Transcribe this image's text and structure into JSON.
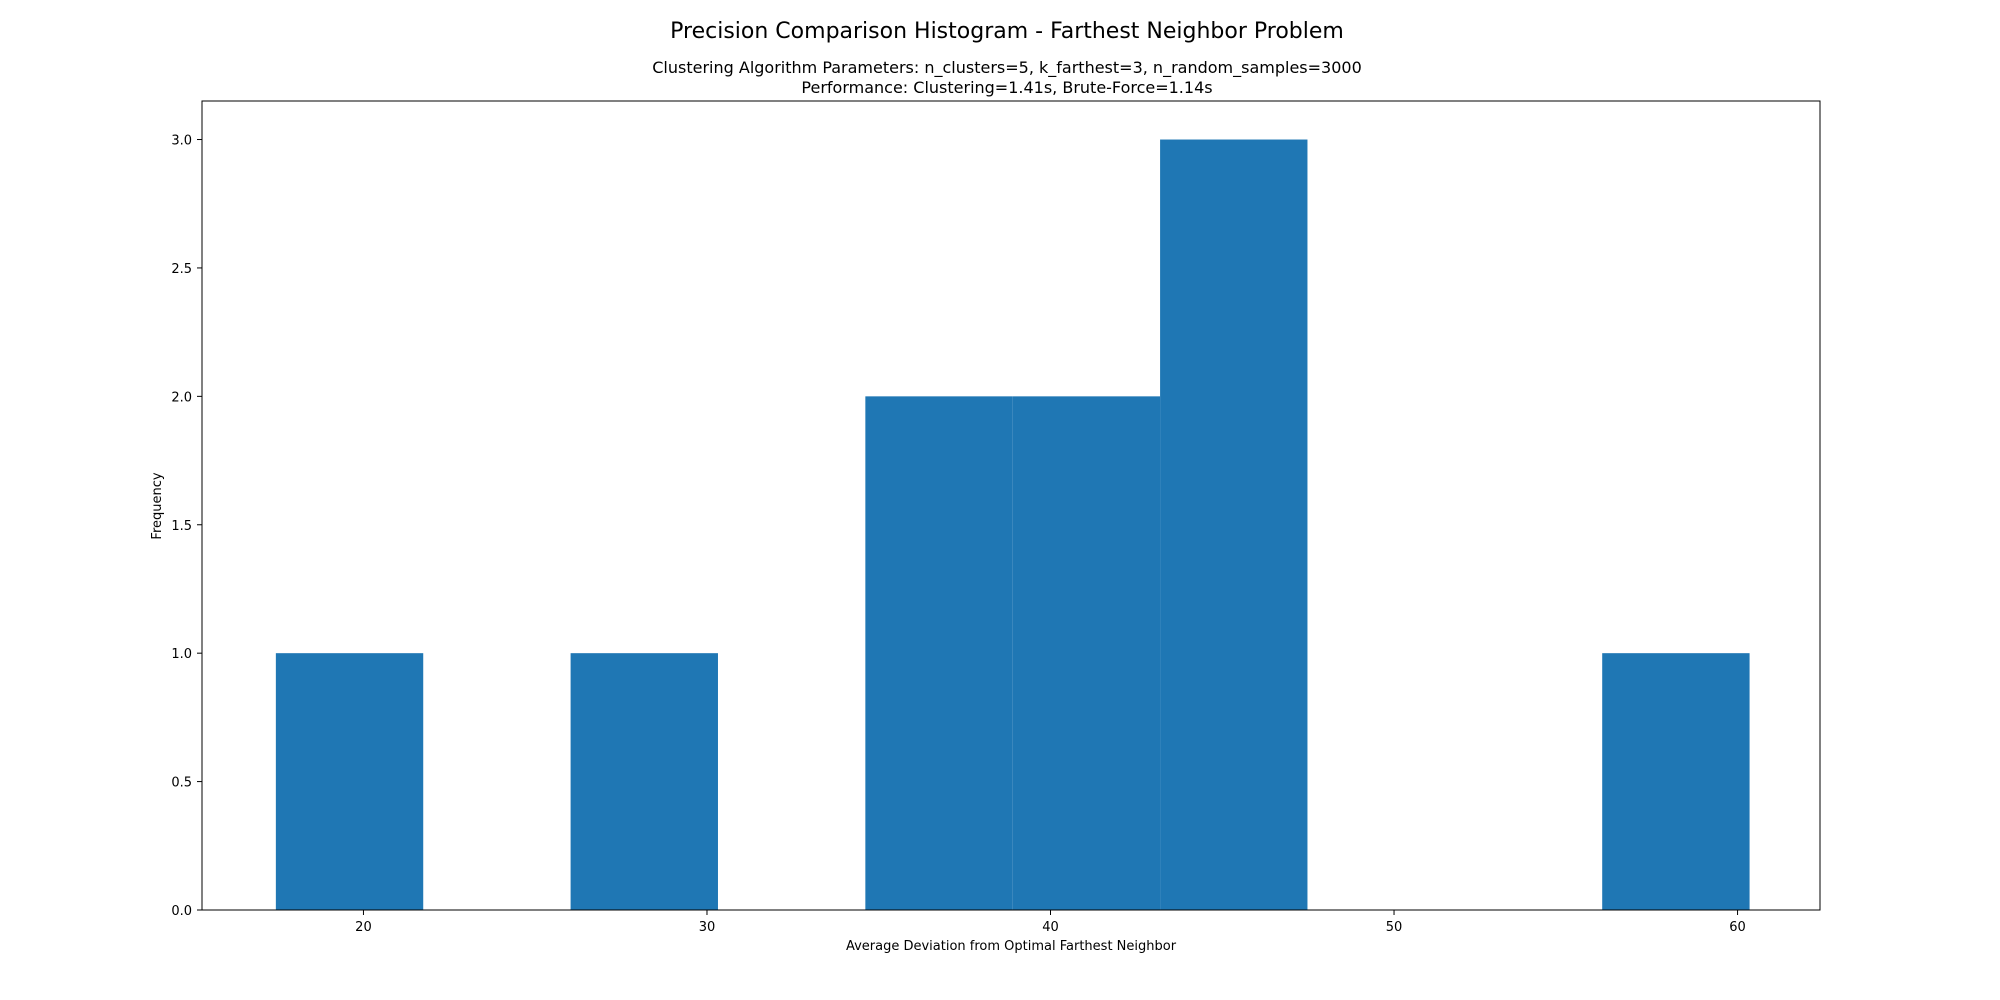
{
  "chart_data": {
    "type": "bar",
    "title": "Precision Comparison Histogram - Farthest Neighbor Problem",
    "subtitle_lines": [
      "Clustering Algorithm Parameters: n_clusters=5,  k_farthest=3, n_random_samples=3000",
      "Performance: Clustering=1.41s, Brute-Force=1.14s"
    ],
    "xlabel": "Average Deviation from Optimal Farthest Neighbor",
    "ylabel": "Frequency",
    "xlim": [
      15.3,
      62.4
    ],
    "ylim": [
      0,
      3.15
    ],
    "x_ticks": [
      20,
      30,
      40,
      50,
      60
    ],
    "y_ticks": [
      "0.0",
      "0.5",
      "1.0",
      "1.5",
      "2.0",
      "2.5",
      "3.0"
    ],
    "grid": false,
    "bar_color": "#1f77b4",
    "bins": [
      {
        "x0": 17.45,
        "x1": 21.74,
        "count": 1
      },
      {
        "x0": 21.74,
        "x1": 26.03,
        "count": 0
      },
      {
        "x0": 26.03,
        "x1": 30.32,
        "count": 1
      },
      {
        "x0": 30.32,
        "x1": 34.61,
        "count": 0
      },
      {
        "x0": 34.61,
        "x1": 38.9,
        "count": 2
      },
      {
        "x0": 38.9,
        "x1": 43.19,
        "count": 2
      },
      {
        "x0": 43.19,
        "x1": 47.48,
        "count": 3
      },
      {
        "x0": 47.48,
        "x1": 51.77,
        "count": 0
      },
      {
        "x0": 51.77,
        "x1": 56.06,
        "count": 0
      },
      {
        "x0": 56.06,
        "x1": 60.35,
        "count": 1
      }
    ]
  }
}
